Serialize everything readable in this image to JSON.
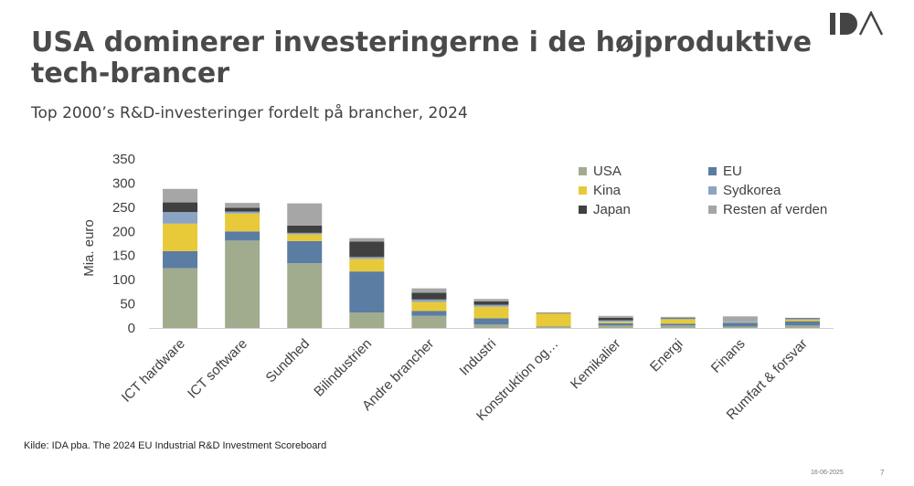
{
  "page": {
    "title": "USA dominerer investeringerne i de højproduktive tech-brancer",
    "subtitle": "Top 2000’s R&D-investeringer fordelt på brancher, 2024",
    "source": "Kilde: IDA pba. The 2024 EU Industrial R&D Investment Scoreboard",
    "date": "16-06-2025",
    "page_number": "7",
    "logo_text": "IDA"
  },
  "chart_data": {
    "type": "bar",
    "stacked": true,
    "ylabel": "Mia. euro",
    "ylim": [
      0,
      350
    ],
    "yticks": [
      0,
      50,
      100,
      150,
      200,
      250,
      300,
      350
    ],
    "grid": false,
    "legend_position": "top-right",
    "categories": [
      "ICT hardware",
      "ICT software",
      "Sundhed",
      "Bilindustrien",
      "Andre brancher",
      "Industri",
      "Konstruktion og…",
      "Kemikalier",
      "Energi",
      "Finans",
      "Rumfart & forsvar"
    ],
    "series": [
      {
        "name": "USA",
        "color": "#a1ac8f",
        "values": [
          124,
          181,
          134,
          32,
          25,
          7,
          2,
          5,
          5,
          3,
          5
        ]
      },
      {
        "name": "EU",
        "color": "#5b7ca3",
        "values": [
          35,
          19,
          46,
          85,
          10,
          13,
          1,
          5,
          4,
          8,
          9
        ]
      },
      {
        "name": "Kina",
        "color": "#e8c939",
        "values": [
          57,
          37,
          14,
          26,
          19,
          24,
          27,
          3,
          9,
          1,
          3
        ]
      },
      {
        "name": "Sydkorea",
        "color": "#8ca4c4",
        "values": [
          24,
          4,
          3,
          4,
          5,
          4,
          0,
          3,
          2,
          2,
          2
        ]
      },
      {
        "name": "Japan",
        "color": "#404040",
        "values": [
          20,
          8,
          15,
          32,
          14,
          7,
          1,
          5,
          1,
          0,
          1
        ]
      },
      {
        "name": "Resten af verden",
        "color": "#a6a6a6",
        "values": [
          28,
          10,
          46,
          7,
          9,
          5,
          1,
          4,
          2,
          10,
          1
        ]
      }
    ]
  }
}
